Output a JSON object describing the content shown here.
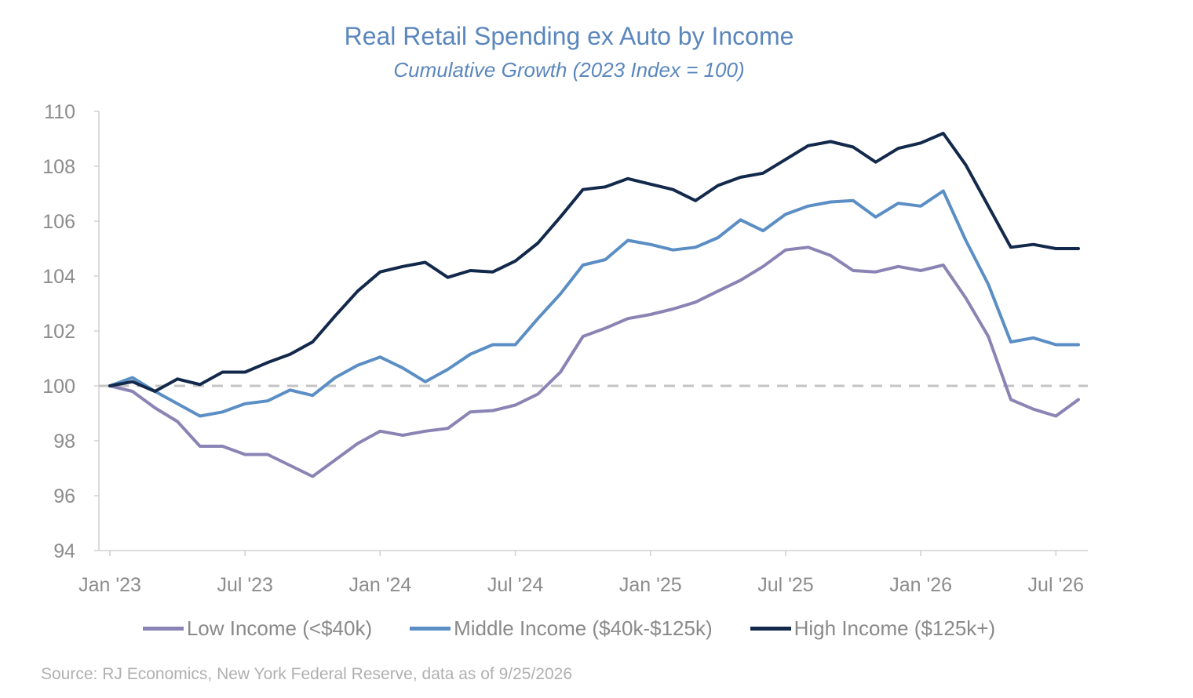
{
  "title": "Real Retail Spending ex Auto by Income",
  "subtitle": "Cumulative Growth (2023 Index = 100)",
  "source": "Source: RJ Economics,  New York Federal Reserve, data as of 9/25/2026",
  "chart_data": {
    "type": "line",
    "title": "Real Retail Spending ex Auto by Income",
    "subtitle": "Cumulative Growth (2023 Index = 100)",
    "ylim": [
      94,
      110
    ],
    "yticks": [
      94,
      96,
      98,
      100,
      102,
      104,
      106,
      108,
      110
    ],
    "x_tick_labels": [
      "Jan '23",
      "Jul '23",
      "Jan '24",
      "Jul '24",
      "Jan '25",
      "Jul '25",
      "Jan '26",
      "Jul '26"
    ],
    "x_tick_months": [
      0,
      6,
      12,
      18,
      24,
      30,
      36,
      42
    ],
    "x": [
      "2023-01",
      "2023-02",
      "2023-03",
      "2023-04",
      "2023-05",
      "2023-06",
      "2023-07",
      "2023-08",
      "2023-09",
      "2023-10",
      "2023-11",
      "2023-12",
      "2024-01",
      "2024-02",
      "2024-03",
      "2024-04",
      "2024-05",
      "2024-06",
      "2024-07",
      "2024-08",
      "2024-09",
      "2024-10",
      "2024-11",
      "2024-12",
      "2025-01",
      "2025-02",
      "2025-03",
      "2025-04",
      "2025-05",
      "2025-06",
      "2025-07",
      "2025-08",
      "2025-09",
      "2025-10",
      "2025-11",
      "2025-12",
      "2026-01",
      "2026-02",
      "2026-03",
      "2026-04",
      "2026-05",
      "2026-06",
      "2026-07",
      "2026-08"
    ],
    "reference_line": 100,
    "grid": false,
    "legend_position": "bottom",
    "series": [
      {
        "name": "Low Income (<$40k)",
        "color": "#8a84b4",
        "values": [
          100.0,
          99.8,
          99.2,
          98.7,
          97.8,
          97.8,
          97.5,
          97.5,
          97.1,
          96.7,
          97.3,
          97.9,
          98.35,
          98.2,
          98.35,
          98.45,
          99.05,
          99.1,
          99.3,
          99.7,
          100.5,
          101.8,
          102.1,
          102.45,
          102.6,
          102.8,
          103.05,
          103.45,
          103.85,
          104.35,
          104.95,
          105.05,
          104.75,
          104.2,
          104.15,
          104.35,
          104.2,
          104.4,
          103.2,
          101.8,
          99.5,
          99.15,
          98.9,
          99.5
        ]
      },
      {
        "name": "Middle Income ($40k-$125k)",
        "color": "#5b8ec4",
        "values": [
          100.0,
          100.3,
          99.8,
          99.35,
          98.9,
          99.05,
          99.35,
          99.45,
          99.85,
          99.65,
          100.3,
          100.75,
          101.05,
          100.65,
          100.15,
          100.6,
          101.15,
          101.5,
          101.5,
          102.45,
          103.35,
          104.4,
          104.6,
          105.3,
          105.15,
          104.95,
          105.05,
          105.4,
          106.05,
          105.65,
          106.25,
          106.55,
          106.7,
          106.75,
          106.15,
          106.65,
          106.55,
          107.1,
          105.3,
          103.7,
          101.6,
          101.75,
          101.5,
          101.5
        ]
      },
      {
        "name": "High Income ($125k+)",
        "color": "#13294b",
        "values": [
          100.0,
          100.15,
          99.8,
          100.25,
          100.05,
          100.5,
          100.5,
          100.85,
          101.15,
          101.6,
          102.55,
          103.45,
          104.15,
          104.35,
          104.5,
          103.95,
          104.2,
          104.15,
          104.55,
          105.2,
          106.15,
          107.15,
          107.25,
          107.55,
          107.35,
          107.15,
          106.75,
          107.3,
          107.6,
          107.75,
          108.25,
          108.75,
          108.9,
          108.7,
          108.15,
          108.65,
          108.85,
          109.2,
          108.05,
          106.55,
          105.05,
          105.15,
          105.0,
          105.0
        ]
      }
    ]
  }
}
